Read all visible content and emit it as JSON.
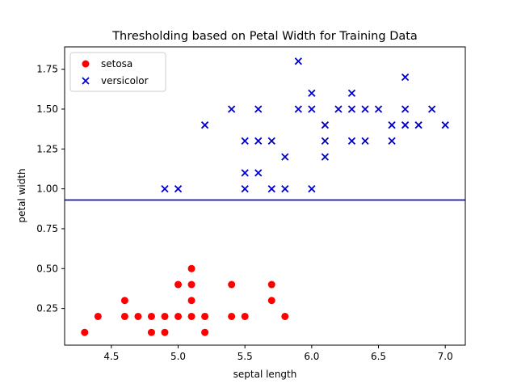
{
  "chart_data": {
    "type": "scatter",
    "title": "Thresholding based on Petal Width for Training Data",
    "xlabel": "septal length",
    "ylabel": "petal width",
    "xlim": [
      4.15,
      7.15
    ],
    "ylim": [
      0.02,
      1.89
    ],
    "xticks": [
      "4.5",
      "5.0",
      "5.5",
      "6.0",
      "6.5",
      "7.0"
    ],
    "yticks": [
      "0.25",
      "0.50",
      "0.75",
      "1.00",
      "1.25",
      "1.50",
      "1.75"
    ],
    "grid": false,
    "legend_position": "top-left",
    "threshold": {
      "y": 0.93,
      "color": "#0000cc"
    },
    "series": [
      {
        "name": "setosa",
        "marker": "circle",
        "color": "#ff0000",
        "points": [
          [
            4.3,
            0.1
          ],
          [
            4.4,
            0.2
          ],
          [
            4.6,
            0.2
          ],
          [
            4.6,
            0.3
          ],
          [
            4.7,
            0.2
          ],
          [
            4.8,
            0.2
          ],
          [
            4.8,
            0.1
          ],
          [
            4.9,
            0.2
          ],
          [
            4.9,
            0.1
          ],
          [
            5.0,
            0.2
          ],
          [
            5.0,
            0.4
          ],
          [
            5.1,
            0.2
          ],
          [
            5.1,
            0.3
          ],
          [
            5.1,
            0.4
          ],
          [
            5.1,
            0.5
          ],
          [
            5.2,
            0.2
          ],
          [
            5.2,
            0.1
          ],
          [
            5.4,
            0.2
          ],
          [
            5.4,
            0.4
          ],
          [
            5.5,
            0.2
          ],
          [
            5.7,
            0.3
          ],
          [
            5.7,
            0.4
          ],
          [
            5.8,
            0.2
          ]
        ]
      },
      {
        "name": "versicolor",
        "marker": "x",
        "color": "#0000cc",
        "points": [
          [
            4.9,
            1.0
          ],
          [
            5.0,
            1.0
          ],
          [
            5.2,
            1.4
          ],
          [
            5.4,
            1.5
          ],
          [
            5.5,
            1.3
          ],
          [
            5.5,
            1.1
          ],
          [
            5.5,
            1.0
          ],
          [
            5.6,
            1.5
          ],
          [
            5.6,
            1.3
          ],
          [
            5.6,
            1.1
          ],
          [
            5.7,
            1.3
          ],
          [
            5.7,
            1.0
          ],
          [
            5.8,
            1.2
          ],
          [
            5.8,
            1.0
          ],
          [
            5.9,
            1.8
          ],
          [
            5.9,
            1.5
          ],
          [
            6.0,
            1.6
          ],
          [
            6.0,
            1.5
          ],
          [
            6.0,
            1.0
          ],
          [
            6.1,
            1.4
          ],
          [
            6.1,
            1.3
          ],
          [
            6.1,
            1.2
          ],
          [
            6.2,
            1.5
          ],
          [
            6.3,
            1.6
          ],
          [
            6.3,
            1.5
          ],
          [
            6.3,
            1.3
          ],
          [
            6.4,
            1.5
          ],
          [
            6.4,
            1.3
          ],
          [
            6.5,
            1.5
          ],
          [
            6.6,
            1.4
          ],
          [
            6.6,
            1.3
          ],
          [
            6.7,
            1.7
          ],
          [
            6.7,
            1.5
          ],
          [
            6.7,
            1.4
          ],
          [
            6.8,
            1.4
          ],
          [
            6.9,
            1.5
          ],
          [
            7.0,
            1.4
          ]
        ]
      }
    ]
  }
}
